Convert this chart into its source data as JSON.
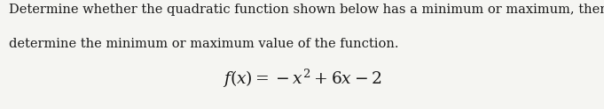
{
  "line1": "Determine whether the quadratic function shown below has a minimum or maximum, then",
  "line2": "determine the minimum or maximum value of the function.",
  "bg_color": "#f5f5f2",
  "text_color": "#1a1a1a",
  "body_fontsize": 10.5,
  "formula_fontsize": 13.5,
  "fig_width": 6.81,
  "fig_height": 1.24,
  "dpi": 100
}
